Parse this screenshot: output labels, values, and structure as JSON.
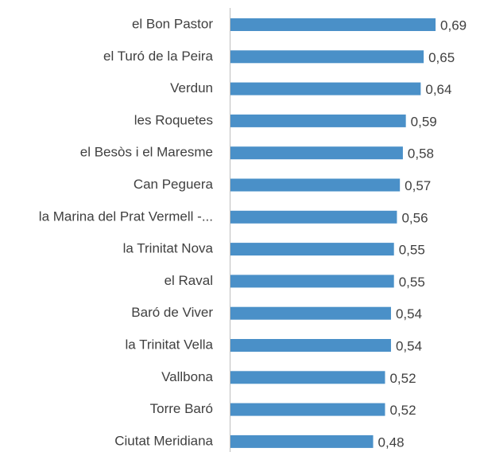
{
  "chart_data": {
    "type": "hbar",
    "categories": [
      "el Bon Pastor",
      "el Turó de la Peira",
      "Verdun",
      "les Roquetes",
      "el Besòs i el Maresme",
      "Can Peguera",
      "la Marina del Prat Vermell -...",
      "la Trinitat Nova",
      "el Raval",
      "Baró de Viver",
      "la Trinitat Vella",
      "Vallbona",
      "Torre Baró",
      "Ciutat Meridiana"
    ],
    "values": [
      0.69,
      0.65,
      0.64,
      0.59,
      0.58,
      0.57,
      0.56,
      0.55,
      0.55,
      0.54,
      0.54,
      0.52,
      0.52,
      0.48
    ],
    "value_labels": [
      "0,69",
      "0,65",
      "0,64",
      "0,59",
      "0,58",
      "0,57",
      "0,56",
      "0,55",
      "0,55",
      "0,54",
      "0,54",
      "0,52",
      "0,52",
      "0,48"
    ],
    "color": "#4a90c8"
  }
}
